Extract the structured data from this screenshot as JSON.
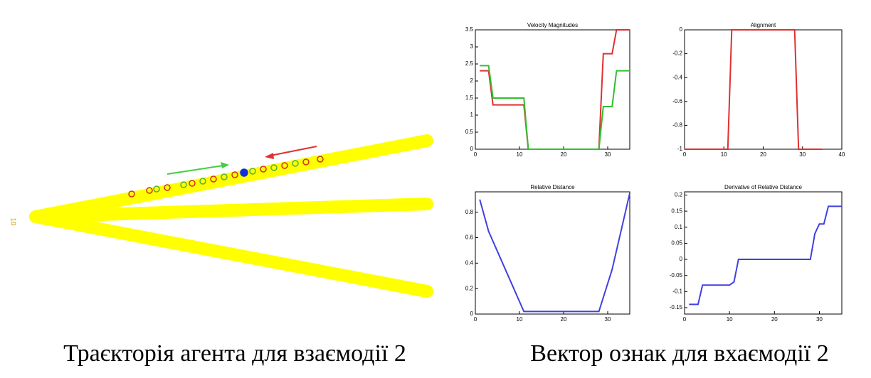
{
  "trajectory_label": "10",
  "captions": [
    "Траєкторія агента для взаємодії 2",
    "Вектор ознак для вхаємодії 2"
  ],
  "chart_data": [
    {
      "type": "line",
      "title": "Velocity Magnitudes",
      "x": [
        1,
        3,
        4,
        11,
        12,
        28,
        29,
        31,
        32,
        35
      ],
      "xlim": [
        0,
        35
      ],
      "xticks": [
        0,
        10,
        20,
        30
      ],
      "ylim": [
        0,
        3.5
      ],
      "yticks": [
        0,
        0.5,
        1,
        1.5,
        2,
        2.5,
        3,
        3.5
      ],
      "series": [
        {
          "color": "#e03030",
          "values": [
            2.3,
            2.3,
            1.3,
            1.3,
            0,
            0,
            2.8,
            2.8,
            3.5,
            3.5
          ]
        },
        {
          "color": "#30c030",
          "values": [
            2.45,
            2.45,
            1.5,
            1.5,
            0,
            0,
            1.25,
            1.25,
            2.3,
            2.3
          ]
        }
      ]
    },
    {
      "type": "line",
      "title": "Alignment",
      "x": [
        0,
        11,
        12,
        28,
        29,
        35
      ],
      "xlim": [
        0,
        40
      ],
      "xticks": [
        0,
        10,
        20,
        30,
        40
      ],
      "ylim": [
        -1,
        0
      ],
      "yticks": [
        -1,
        -0.8,
        -0.6,
        -0.4,
        -0.2,
        0
      ],
      "series": [
        {
          "color": "#e03030",
          "values": [
            -1,
            -1,
            0,
            0,
            -1,
            -1
          ]
        }
      ]
    },
    {
      "type": "line",
      "title": "Relative Distance",
      "x": [
        1,
        3,
        11,
        28,
        31,
        33,
        35
      ],
      "xlim": [
        0,
        35
      ],
      "xticks": [
        0,
        10,
        20,
        30
      ],
      "ylim": [
        0,
        0.96
      ],
      "yticks": [
        0,
        0.2,
        0.4,
        0.6,
        0.8
      ],
      "series": [
        {
          "color": "#4040e0",
          "values": [
            0.9,
            0.65,
            0.02,
            0.02,
            0.35,
            0.65,
            0.95
          ]
        }
      ]
    },
    {
      "type": "line",
      "title": "Derivative of Relative Distance",
      "x": [
        1,
        3,
        4,
        10,
        11,
        12,
        28,
        29,
        30,
        31,
        32,
        35
      ],
      "xlim": [
        0,
        35
      ],
      "xticks": [
        0,
        10,
        20,
        30
      ],
      "ylim": [
        -0.17,
        0.21
      ],
      "yticks": [
        -0.15,
        -0.1,
        -0.05,
        0,
        0.05,
        0.1,
        0.15,
        0.2
      ],
      "series": [
        {
          "color": "#4040e0",
          "values": [
            -0.14,
            -0.14,
            -0.08,
            -0.08,
            -0.07,
            0,
            0,
            0.08,
            0.11,
            0.11,
            0.165,
            0.165
          ]
        }
      ]
    }
  ]
}
